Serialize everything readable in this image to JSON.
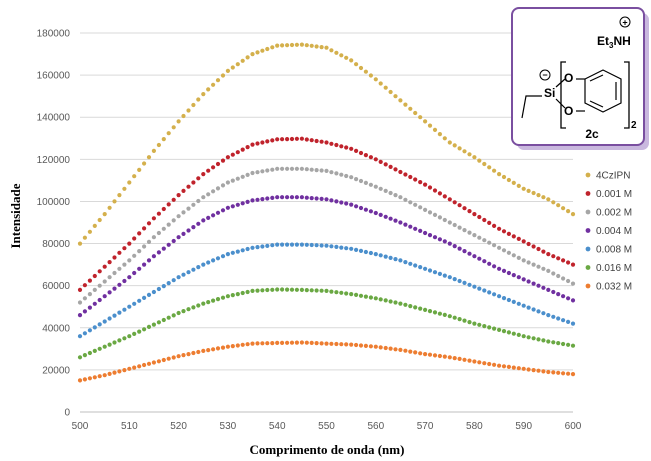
{
  "chart_data": {
    "type": "scatter",
    "xlabel": "Comprimento de onda (nm)",
    "ylabel": "Intensidade",
    "xlim": [
      500,
      600
    ],
    "ylim": [
      0,
      180000
    ],
    "x_ticks": [
      "500",
      "510",
      "520",
      "530",
      "540",
      "550",
      "560",
      "570",
      "580",
      "590",
      "600"
    ],
    "y_ticks": [
      "0",
      "20000",
      "40000",
      "60000",
      "80000",
      "100000",
      "120000",
      "140000",
      "160000",
      "180000"
    ],
    "grid": "horizontal",
    "legend_position": "right",
    "x": [
      500,
      505,
      510,
      515,
      520,
      525,
      530,
      535,
      540,
      545,
      550,
      555,
      560,
      565,
      570,
      575,
      580,
      585,
      590,
      595,
      600
    ],
    "series": [
      {
        "name": "4CzIPN",
        "color": "#d4b04c",
        "values": [
          80000,
          94000,
          109000,
          124000,
          138000,
          151000,
          162000,
          170000,
          174000,
          174500,
          173000,
          167000,
          158000,
          148000,
          138000,
          128000,
          121000,
          113000,
          106000,
          101000,
          94000
        ]
      },
      {
        "name": "0.001 M",
        "color": "#c0232c",
        "values": [
          58000,
          69000,
          80000,
          92000,
          103000,
          113000,
          121000,
          127000,
          129500,
          129800,
          128000,
          125000,
          120000,
          114000,
          108000,
          101000,
          94000,
          87000,
          81000,
          75000,
          70000
        ]
      },
      {
        "name": "0.002 M",
        "color": "#a6a6a6",
        "values": [
          52000,
          62000,
          72000,
          83000,
          93000,
          102000,
          109000,
          113500,
          115500,
          115500,
          114500,
          111500,
          107000,
          102000,
          96000,
          90000,
          84000,
          78000,
          72000,
          67000,
          61000
        ]
      },
      {
        "name": "0.004 M",
        "color": "#7030a0",
        "values": [
          46000,
          55000,
          64000,
          74000,
          83000,
          91000,
          97000,
          100500,
          102000,
          102000,
          101000,
          98500,
          94500,
          90000,
          85000,
          80000,
          74000,
          68000,
          63000,
          58000,
          53000
        ]
      },
      {
        "name": "0.008 M",
        "color": "#4b8fcc",
        "values": [
          36000,
          43000,
          50000,
          57000,
          64000,
          70000,
          75000,
          78000,
          79500,
          79500,
          79000,
          77500,
          75000,
          72000,
          68000,
          64000,
          59500,
          55000,
          50500,
          46000,
          42000
        ]
      },
      {
        "name": "0.016 M",
        "color": "#6aa843",
        "values": [
          26000,
          31000,
          36000,
          41500,
          47000,
          51500,
          55000,
          57500,
          58200,
          58000,
          57500,
          56000,
          54000,
          51500,
          48500,
          45500,
          42000,
          39000,
          36000,
          33500,
          31500
        ]
      },
      {
        "name": "0.032 M",
        "color": "#ed7d31",
        "values": [
          15000,
          17500,
          20500,
          23500,
          26500,
          29000,
          31000,
          32500,
          32800,
          33000,
          32500,
          32000,
          31000,
          29500,
          27500,
          26000,
          24000,
          22000,
          20500,
          19000,
          18000
        ]
      }
    ]
  },
  "molecule": {
    "label": "2c",
    "cation": "Et3NH",
    "silicon": "Si",
    "oxygen": "O",
    "subscript": "2",
    "charge_plus": "+",
    "charge_minus": "−"
  },
  "colors": {
    "box_border": "#7a4fa0",
    "box_shadow": "#c9b8de"
  }
}
